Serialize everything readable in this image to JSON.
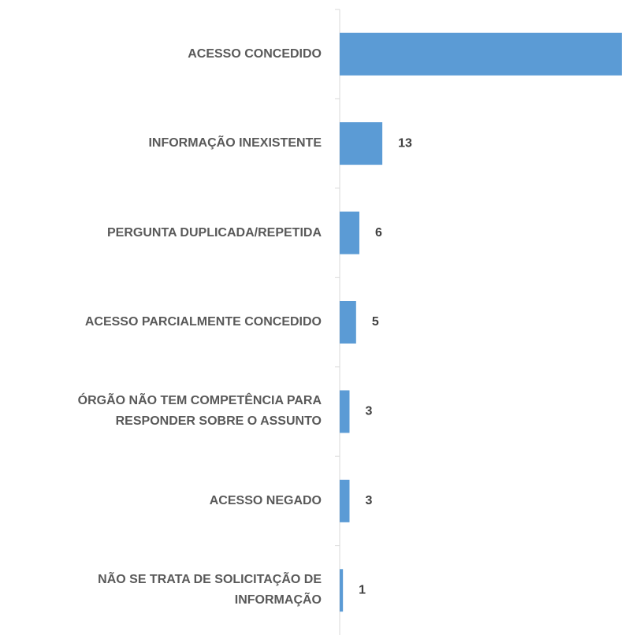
{
  "chart_data": {
    "type": "bar",
    "orientation": "horizontal",
    "categories": [
      "ACESSO CONCEDIDO",
      "INFORMAÇÃO INEXISTENTE",
      "PERGUNTA DUPLICADA/REPETIDA",
      "ACESSO PARCIALMENTE CONCEDIDO",
      "ÓRGÃO NÃO TEM COMPETÊNCIA PARA RESPONDER SOBRE O ASSUNTO",
      "ACESSO NEGADO",
      "NÃO SE TRATA DE SOLICITAÇÃO DE INFORMAÇÃO"
    ],
    "values": [
      86,
      13,
      6,
      5,
      3,
      3,
      1
    ],
    "color": "#5b9bd5"
  }
}
